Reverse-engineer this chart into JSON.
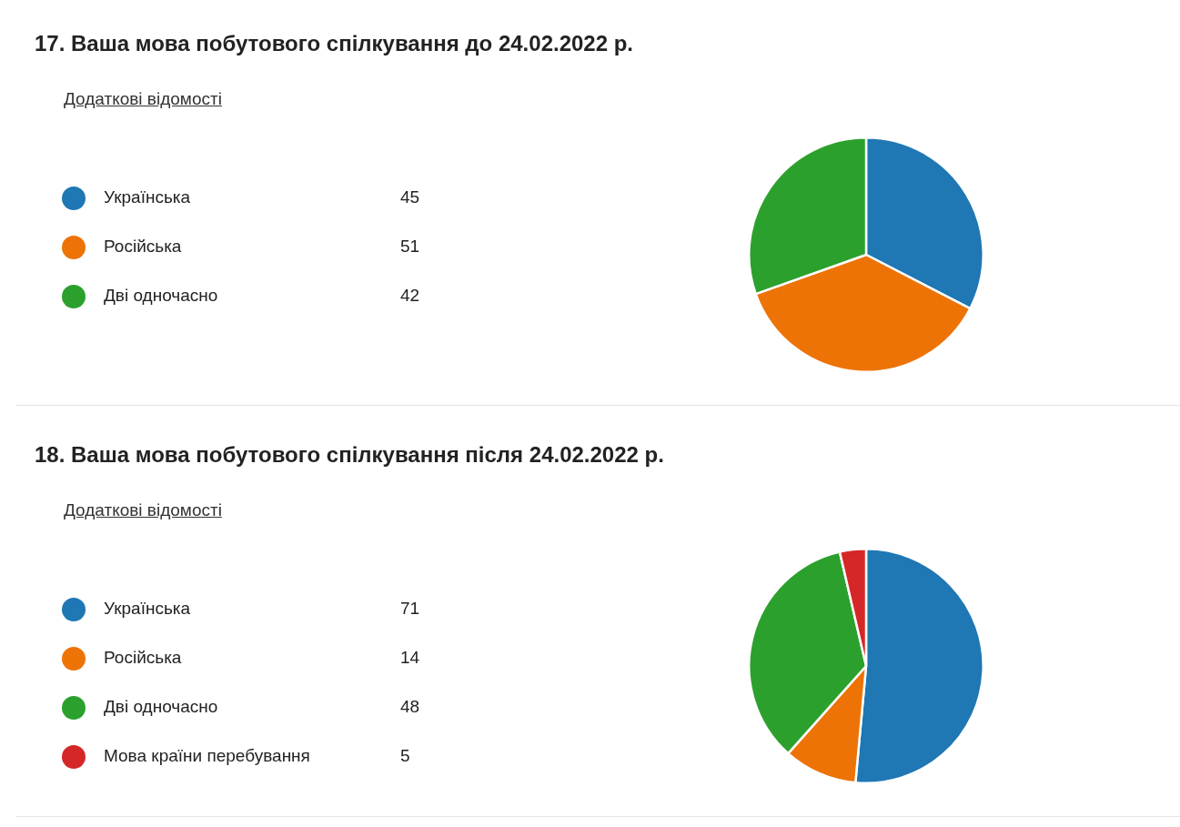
{
  "chart_data": [
    {
      "type": "pie",
      "title": "17. Ваша мова побутового спілкування до 24.02.2022 р.",
      "annotations": [
        "Додаткові відомості"
      ],
      "categories": [
        "Українська",
        "Російська",
        "Дві одночасно"
      ],
      "values": [
        45,
        51,
        42
      ],
      "colors": [
        "#1f77b4",
        "#ed7306",
        "#2ca02c"
      ],
      "legend": "left",
      "data_labels": true
    },
    {
      "type": "pie",
      "title": "18. Ваша мова побутового спілкування після 24.02.2022 р.",
      "annotations": [
        "Додаткові відомості"
      ],
      "categories": [
        "Українська",
        "Російська",
        "Дві одночасно",
        "Мова країни перебування"
      ],
      "values": [
        71,
        14,
        48,
        5
      ],
      "colors": [
        "#1f77b4",
        "#ed7306",
        "#2ca02c",
        "#d62728"
      ],
      "legend": "left",
      "data_labels": true
    }
  ]
}
